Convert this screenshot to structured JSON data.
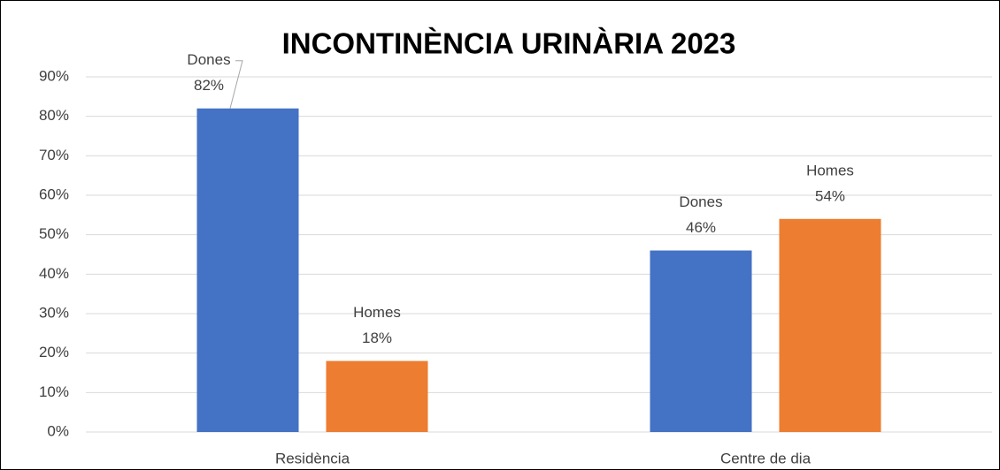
{
  "chart_data": {
    "type": "bar",
    "title": "INCONTINÈNCIA URINÀRIA 2023",
    "categories": [
      "Residència",
      "Centre de dia"
    ],
    "series": [
      {
        "name": "Dones",
        "color": "#4472c4",
        "values": [
          82,
          46
        ],
        "value_labels": [
          "82%",
          "46%"
        ]
      },
      {
        "name": "Homes",
        "color": "#ed7d31",
        "values": [
          18,
          54
        ],
        "value_labels": [
          "18%",
          "54%"
        ]
      }
    ],
    "ylim": [
      0,
      90
    ],
    "yticks": [
      {
        "value": 0,
        "label": "0%"
      },
      {
        "value": 10,
        "label": "10%"
      },
      {
        "value": 20,
        "label": "20%"
      },
      {
        "value": 30,
        "label": "30%"
      },
      {
        "value": 40,
        "label": "40%"
      },
      {
        "value": 50,
        "label": "50%"
      },
      {
        "value": 60,
        "label": "60%"
      },
      {
        "value": 70,
        "label": "70%"
      },
      {
        "value": 80,
        "label": "80%"
      },
      {
        "value": 90,
        "label": "90%"
      }
    ],
    "grid": true
  }
}
